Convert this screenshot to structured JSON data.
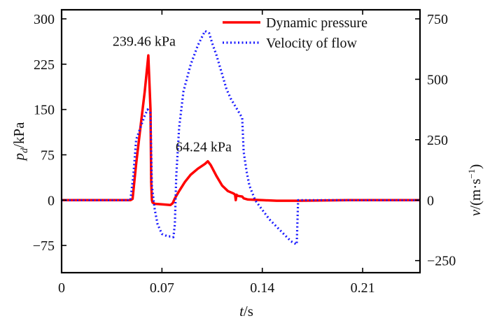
{
  "chart_data": {
    "type": "line",
    "xlabel": {
      "main": "t",
      "unit": "/s"
    },
    "ylabel_left": {
      "main": "p",
      "sub": "d",
      "unit": "/kPa"
    },
    "ylabel_right": {
      "main": "v",
      "unit_pre": "/(m·s",
      "unit_sup": "−1",
      "unit_post": ")"
    },
    "xlim": [
      0,
      0.25
    ],
    "xticks": [
      0,
      0.07,
      0.14,
      0.21
    ],
    "xtick_labels": [
      "0",
      "0.07",
      "0.14",
      "0.21"
    ],
    "ylim_left": [
      -120,
      315
    ],
    "yticks_left": [
      -75,
      0,
      75,
      150,
      225,
      300
    ],
    "ytick_labels_left": [
      "−75",
      "0",
      "75",
      "150",
      "225",
      "300"
    ],
    "ylim_right": [
      -300,
      787.5
    ],
    "yticks_right": [
      -250,
      0,
      250,
      500,
      750
    ],
    "ytick_labels_right": [
      "−250",
      "0",
      "250",
      "500",
      "750"
    ],
    "grid": false,
    "legend_position": "top-right",
    "series": [
      {
        "name": "Dynamic pressure",
        "axis": "left",
        "color": "#ff0000",
        "dash": "solid",
        "x": [
          0,
          0.048,
          0.0495,
          0.052,
          0.055,
          0.058,
          0.0605,
          0.062,
          0.0625,
          0.063,
          0.0635,
          0.065,
          0.07,
          0.076,
          0.0775,
          0.079,
          0.082,
          0.086,
          0.09,
          0.095,
          0.1,
          0.102,
          0.104,
          0.108,
          0.112,
          0.116,
          0.12,
          0.121,
          0.1215,
          0.122,
          0.1225,
          0.123,
          0.126,
          0.127,
          0.13,
          0.14,
          0.15,
          0.165,
          0.2,
          0.25
        ],
        "y": [
          0,
          0,
          2,
          60,
          120,
          180,
          239.46,
          150,
          30,
          0,
          -4,
          -6,
          -7,
          -8,
          -5,
          3,
          15,
          30,
          42,
          52,
          60,
          64.24,
          58,
          40,
          24,
          15,
          11,
          9,
          0,
          9,
          8,
          7,
          6,
          3,
          1,
          0,
          -1,
          -1,
          0,
          0
        ]
      },
      {
        "name": "Velocity of flow",
        "axis": "right",
        "color": "#1a1aff",
        "dash": "dotted",
        "x": [
          0,
          0.048,
          0.05,
          0.052,
          0.055,
          0.058,
          0.06,
          0.062,
          0.0625,
          0.063,
          0.065,
          0.067,
          0.07,
          0.074,
          0.076,
          0.078,
          0.079,
          0.08,
          0.082,
          0.085,
          0.09,
          0.095,
          0.1,
          0.103,
          0.105,
          0.108,
          0.112,
          0.115,
          0.118,
          0.121,
          0.124,
          0.126,
          0.127,
          0.129,
          0.131,
          0.135,
          0.14,
          0.145,
          0.15,
          0.155,
          0.16,
          0.163,
          0.164,
          0.165,
          0.18,
          0.2,
          0.25
        ],
        "y": [
          0,
          0,
          100,
          250,
          300,
          350,
          375,
          360,
          200,
          60,
          -40,
          -100,
          -140,
          -150,
          -150,
          -153,
          -100,
          100,
          300,
          450,
          560,
          640,
          700,
          690,
          650,
          600,
          520,
          460,
          420,
          390,
          360,
          340,
          200,
          120,
          60,
          0,
          -40,
          -80,
          -110,
          -140,
          -170,
          -180,
          -183,
          0,
          0,
          0,
          0
        ]
      }
    ],
    "annotations": [
      {
        "text": "239.46 kPa",
        "x": 0.0605,
        "y": 239.46,
        "axis": "left"
      },
      {
        "text": "64.24 kPa",
        "x": 0.102,
        "y": 64.24,
        "axis": "left"
      }
    ]
  }
}
